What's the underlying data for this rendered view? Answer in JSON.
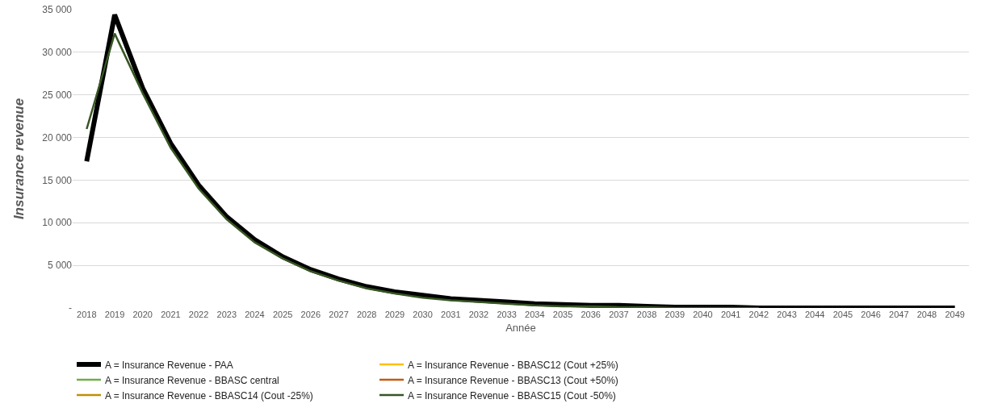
{
  "chart_data": {
    "type": "line",
    "xlabel": "Année",
    "ylabel": "Insurance revenue",
    "categories": [
      "2018",
      "2019",
      "2020",
      "2021",
      "2022",
      "2023",
      "2024",
      "2025",
      "2026",
      "2027",
      "2028",
      "2029",
      "2030",
      "2031",
      "2032",
      "2033",
      "2034",
      "2035",
      "2036",
      "2037",
      "2038",
      "2039",
      "2040",
      "2041",
      "2042",
      "2043",
      "2044",
      "2045",
      "2046",
      "2047",
      "2048",
      "2049"
    ],
    "ylim": [
      0,
      35000
    ],
    "yticks": [
      {
        "value": 0,
        "label": "-"
      },
      {
        "value": 5000,
        "label": "5 000"
      },
      {
        "value": 10000,
        "label": "10 000"
      },
      {
        "value": 15000,
        "label": "15 000"
      },
      {
        "value": 20000,
        "label": "20 000"
      },
      {
        "value": 25000,
        "label": "25 000"
      },
      {
        "value": 30000,
        "label": "30 000"
      },
      {
        "value": 35000,
        "label": "35 000"
      }
    ],
    "grid": "y",
    "legend": "bottom",
    "marker": "none",
    "line_style": "solid",
    "series": [
      {
        "name": "A = Insurance Revenue - PAA",
        "color": "#000000",
        "values": [
          17200,
          34400,
          25800,
          19300,
          14400,
          10700,
          8000,
          6000,
          4500,
          3400,
          2500,
          1900,
          1500,
          1100,
          900,
          700,
          500,
          400,
          300,
          300,
          200,
          100,
          100,
          100,
          0,
          0,
          0,
          0,
          0,
          0,
          0,
          0
        ]
      },
      {
        "name": "A = Insurance Revenue - BBASC12 (Cout +25%)",
        "color": "#ffc000",
        "values": [
          null,
          null,
          null,
          null,
          null,
          null,
          null,
          null,
          null,
          null,
          null,
          null,
          null,
          null,
          null,
          null,
          null,
          null,
          null,
          null,
          null,
          null,
          null,
          null,
          null,
          null,
          null,
          null,
          null,
          null,
          null,
          null
        ]
      },
      {
        "name": "A = Insurance Revenue - BBASC central",
        "color": "#70ad47",
        "values": [
          null,
          null,
          null,
          null,
          null,
          null,
          null,
          null,
          null,
          null,
          null,
          null,
          null,
          null,
          null,
          null,
          null,
          null,
          null,
          null,
          null,
          null,
          null,
          null,
          null,
          null,
          null,
          null,
          null,
          null,
          null,
          null
        ]
      },
      {
        "name": "A = Insurance Revenue - BBASC13 (Cout +50%)",
        "color": "#c55a11",
        "values": [
          null,
          null,
          null,
          null,
          null,
          null,
          null,
          null,
          null,
          null,
          null,
          null,
          null,
          null,
          null,
          null,
          null,
          null,
          null,
          null,
          null,
          null,
          null,
          null,
          null,
          null,
          null,
          null,
          null,
          null,
          null,
          null
        ]
      },
      {
        "name": "A = Insurance Revenue - BBASC14 (Cout -25%)",
        "color": "#bf9000",
        "values": [
          null,
          null,
          null,
          null,
          null,
          null,
          null,
          null,
          null,
          null,
          null,
          null,
          null,
          null,
          null,
          null,
          null,
          null,
          null,
          null,
          null,
          null,
          null,
          null,
          null,
          null,
          null,
          null,
          null,
          null,
          null,
          null
        ]
      },
      {
        "name": "A = Insurance Revenue - BBASC15 (Cout -50%)",
        "color": "#375623",
        "values": [
          21000,
          32200,
          25200,
          18800,
          14000,
          10400,
          7700,
          5800,
          4300,
          3200,
          2300,
          1700,
          1200,
          900,
          700,
          500,
          300,
          200,
          200,
          100,
          100,
          0,
          0,
          0,
          0,
          null,
          null,
          null,
          null,
          null,
          null,
          null
        ]
      }
    ]
  }
}
